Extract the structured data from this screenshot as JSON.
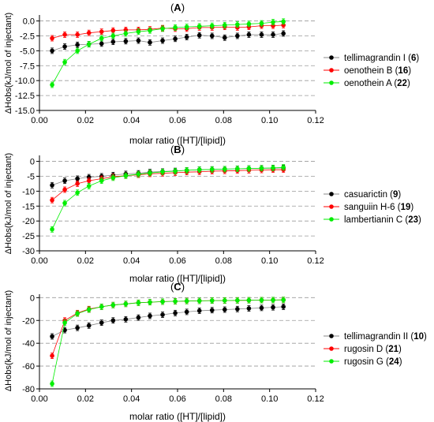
{
  "chart_data": [
    {
      "type": "line",
      "panel_label": "A",
      "xlabel": "molar ratio ([HT]/[lipid])",
      "ylabel": "ΔHobs(kJ/mol of injectant)",
      "xlim": [
        0,
        0.12
      ],
      "ylim": [
        -15,
        1
      ],
      "xticks": [
        "0.00",
        "0.02",
        "0.04",
        "0.06",
        "0.08",
        "0.10",
        "0.12"
      ],
      "yticks": [
        "0.0",
        "-2.5",
        "-5.0",
        "-7.5",
        "-10.0",
        "-12.5",
        "-15.0"
      ],
      "grid": "horizontal dashed",
      "legend_position": "right",
      "x": [
        0.0055,
        0.011,
        0.0165,
        0.0215,
        0.027,
        0.032,
        0.0375,
        0.043,
        0.048,
        0.0535,
        0.059,
        0.064,
        0.0695,
        0.075,
        0.0805,
        0.086,
        0.091,
        0.0965,
        0.1015,
        0.106
      ],
      "series": [
        {
          "name": "tellimagrandin I",
          "num": "6",
          "color": "#000000",
          "values": [
            -5.0,
            -4.3,
            -4.0,
            -3.9,
            -3.8,
            -3.5,
            -3.4,
            -3.3,
            -3.6,
            -3.3,
            -3.0,
            -2.7,
            -2.4,
            -2.5,
            -2.8,
            -2.5,
            -2.3,
            -2.3,
            -2.3,
            -2.1
          ]
        },
        {
          "name": "oenothein B",
          "num": "16",
          "color": "#ff0000",
          "values": [
            -2.9,
            -2.3,
            -2.3,
            -2.0,
            -1.8,
            -1.6,
            -1.5,
            -1.5,
            -1.4,
            -1.2,
            -1.3,
            -1.3,
            -1.1,
            -1.1,
            -1.0,
            -1.1,
            -1.0,
            -0.8,
            -0.8,
            -0.7
          ]
        },
        {
          "name": "oenothein A",
          "num": "22",
          "color": "#00ee00",
          "values": [
            -10.7,
            -6.9,
            -5.0,
            -3.9,
            -2.9,
            -2.5,
            -2.1,
            -1.8,
            -1.6,
            -1.3,
            -1.1,
            -1.0,
            -0.9,
            -0.8,
            -0.7,
            -0.6,
            -0.5,
            -0.4,
            -0.2,
            -0.1
          ]
        }
      ]
    },
    {
      "type": "line",
      "panel_label": "B",
      "xlabel": "molar ratio ([HT]/[lipid])",
      "ylabel": "ΔHobs(kJ/mol of injectant)",
      "xlim": [
        0,
        0.12
      ],
      "ylim": [
        -30,
        2
      ],
      "xticks": [
        "0.00",
        "0.02",
        "0.04",
        "0.06",
        "0.08",
        "0.10",
        "0.12"
      ],
      "yticks": [
        "0",
        "-5",
        "-10",
        "-15",
        "-20",
        "-25",
        "-30"
      ],
      "grid": "horizontal dashed",
      "legend_position": "right",
      "x": [
        0.0055,
        0.011,
        0.0165,
        0.0215,
        0.027,
        0.032,
        0.0375,
        0.043,
        0.048,
        0.0535,
        0.059,
        0.064,
        0.0695,
        0.075,
        0.0805,
        0.086,
        0.091,
        0.0965,
        0.1015,
        0.106
      ],
      "series": [
        {
          "name": "casuarictin",
          "num": "9",
          "color": "#000000",
          "values": [
            -8.0,
            -6.5,
            -5.8,
            -5.3,
            -5.0,
            -4.6,
            -4.2,
            -4.0,
            -3.6,
            -3.4,
            -3.2,
            -3.0,
            -2.8,
            -2.7,
            -2.6,
            -2.5,
            -2.4,
            -2.3,
            -2.3,
            -2.2
          ]
        },
        {
          "name": "sanguiin H-6",
          "num": "19",
          "color": "#ff0000",
          "values": [
            -13.0,
            -9.5,
            -7.5,
            -6.5,
            -5.8,
            -5.2,
            -4.8,
            -4.5,
            -4.2,
            -4.0,
            -3.8,
            -3.6,
            -3.5,
            -3.3,
            -3.2,
            -3.1,
            -3.0,
            -2.9,
            -2.8,
            -2.8
          ]
        },
        {
          "name": "lambertianin C",
          "num": "23",
          "color": "#00ee00",
          "values": [
            -22.8,
            -14.0,
            -10.5,
            -8.3,
            -6.5,
            -5.5,
            -4.8,
            -4.3,
            -3.9,
            -3.5,
            -3.3,
            -3.0,
            -2.8,
            -2.7,
            -2.6,
            -2.5,
            -2.4,
            -2.3,
            -2.2,
            -2.0
          ]
        }
      ]
    },
    {
      "type": "line",
      "panel_label": "C",
      "xlabel": "molar ratio ([HT]/[lipid])",
      "ylabel": "ΔHobs(kJ/mol of injectant)",
      "xlim": [
        0,
        0.12
      ],
      "ylim": [
        -80,
        3
      ],
      "xticks": [
        "0.00",
        "0.02",
        "0.04",
        "0.06",
        "0.08",
        "0.10",
        "0.12"
      ],
      "yticks": [
        "0",
        "-20",
        "-40",
        "-60",
        "-80"
      ],
      "grid": "horizontal dashed",
      "legend_position": "right",
      "x": [
        0.0055,
        0.011,
        0.0165,
        0.0215,
        0.027,
        0.032,
        0.0375,
        0.043,
        0.048,
        0.0535,
        0.059,
        0.064,
        0.0695,
        0.075,
        0.0805,
        0.086,
        0.091,
        0.0965,
        0.1015,
        0.106
      ],
      "series": [
        {
          "name": "tellimagrandin II",
          "num": "10",
          "color": "#000000",
          "values": [
            -34.0,
            -28.5,
            -26.5,
            -24.5,
            -22.0,
            -20.0,
            -19.0,
            -17.5,
            -16.0,
            -15.0,
            -13.5,
            -12.5,
            -11.5,
            -11.0,
            -10.5,
            -10.0,
            -9.5,
            -9.0,
            -8.5,
            -8.0
          ]
        },
        {
          "name": "rugosin D",
          "num": "21",
          "color": "#ff0000",
          "values": [
            -51.0,
            -20.0,
            -13.5,
            -10.0,
            -8.0,
            -6.5,
            -5.5,
            -4.5,
            -4.0,
            -3.5,
            -3.2,
            -3.0,
            -2.8,
            -2.6,
            -2.5,
            -2.4,
            -2.3,
            -2.2,
            -2.1,
            -2.0
          ]
        },
        {
          "name": "rugosin G",
          "num": "24",
          "color": "#00ee00",
          "values": [
            -75.5,
            -22.0,
            -14.0,
            -10.5,
            -8.0,
            -6.5,
            -5.5,
            -4.5,
            -4.0,
            -3.5,
            -3.2,
            -3.0,
            -2.8,
            -2.6,
            -2.5,
            -2.4,
            -2.3,
            -2.2,
            -2.1,
            -2.0
          ]
        }
      ]
    }
  ]
}
